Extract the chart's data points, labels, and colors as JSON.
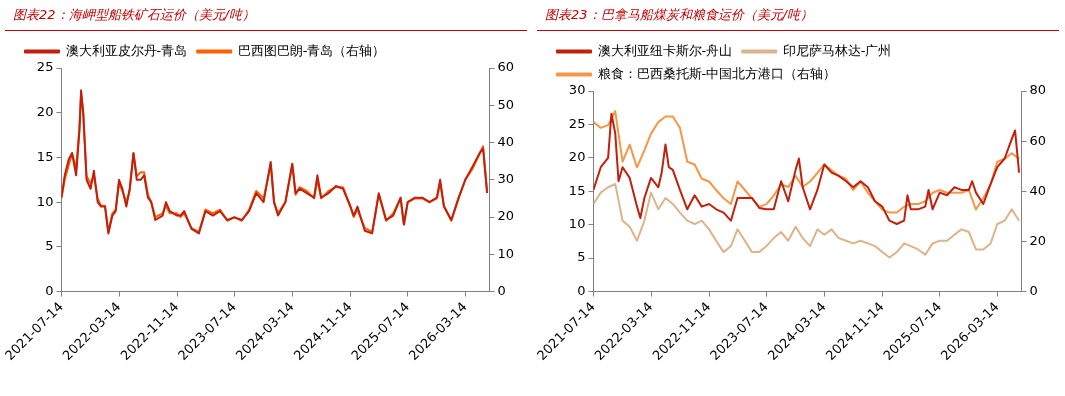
{
  "chart_data": [
    {
      "type": "line",
      "title": "图表22：海岬型船铁矿石运价（美元/吨）",
      "legend": "top",
      "x": [
        "2021-07-14",
        "2021-07-28",
        "2021-08-14",
        "2021-08-28",
        "2021-09-14",
        "2021-09-28",
        "2021-10-05",
        "2021-10-14",
        "2021-10-28",
        "2021-11-14",
        "2021-11-28",
        "2021-12-14",
        "2021-12-28",
        "2022-01-14",
        "2022-01-28",
        "2022-02-14",
        "2022-02-28",
        "2022-03-14",
        "2022-03-28",
        "2022-04-14",
        "2022-04-28",
        "2022-05-14",
        "2022-05-28",
        "2022-06-14",
        "2022-06-28",
        "2022-07-14",
        "2022-07-28",
        "2022-08-14",
        "2022-09-14",
        "2022-09-28",
        "2022-10-14",
        "2022-11-14",
        "2022-11-28",
        "2022-12-14",
        "2023-01-14",
        "2023-02-14",
        "2023-03-14",
        "2023-04-14",
        "2023-05-14",
        "2023-06-14",
        "2023-07-14",
        "2023-08-14",
        "2023-09-14",
        "2023-10-14",
        "2023-11-14",
        "2023-12-14",
        "2023-12-28",
        "2024-01-14",
        "2024-02-14",
        "2024-03-14",
        "2024-03-28",
        "2024-04-14",
        "2024-05-14",
        "2024-06-14",
        "2024-06-28",
        "2024-07-14",
        "2024-08-14",
        "2024-09-14",
        "2024-10-14",
        "2024-11-14",
        "2024-11-28",
        "2024-12-14",
        "2025-01-14",
        "2025-02-14",
        "2025-03-14",
        "2025-04-14",
        "2025-05-14",
        "2025-06-14",
        "2025-06-28",
        "2025-07-14",
        "2025-08-14",
        "2025-09-14",
        "2025-10-14",
        "2025-11-14",
        "2025-11-28",
        "2025-12-14",
        "2026-01-14",
        "2026-02-14",
        "2026-03-14",
        "2026-04-14",
        "2026-05-14",
        "2026-05-28",
        "2026-06-14"
      ],
      "xlim": [
        "2021-07-14",
        "2026-06-24"
      ],
      "xticks": [
        "2021-07-14",
        "2022-03-14",
        "2022-11-14",
        "2023-07-14",
        "2024-03-14",
        "2024-11-14",
        "2025-07-14",
        "2026-03-14"
      ],
      "ylim": [
        0,
        25
      ],
      "yticks": [
        0,
        5,
        10,
        15,
        20,
        25
      ],
      "y2lim": [
        0,
        60
      ],
      "y2ticks": [
        0,
        10,
        20,
        30,
        40,
        50,
        60
      ],
      "series": [
        {
          "name": "澳大利亚皮尔丹-青岛",
          "color": "#c0210e",
          "values": [
            10.5,
            13,
            14.8,
            15.5,
            13,
            18,
            22.5,
            20,
            12.5,
            11.5,
            13.5,
            10,
            9.5,
            9.5,
            6.5,
            8.5,
            9,
            12.5,
            11.5,
            9.5,
            11.5,
            15.5,
            12.5,
            12.5,
            13,
            10.5,
            10,
            8,
            8.5,
            10,
            9,
            8.5,
            8.5,
            9,
            7,
            6.5,
            9,
            8.5,
            9,
            8,
            8.3,
            8,
            9,
            11,
            10,
            14.5,
            10,
            8.5,
            10,
            14.3,
            11,
            11.5,
            11,
            10.5,
            13,
            10.5,
            11,
            11.8,
            11.5,
            9.5,
            8.5,
            9.5,
            6.8,
            6.5,
            11,
            8,
            8.5,
            10.5,
            7.5,
            10,
            10.5,
            10.5,
            10,
            10.5,
            12.5,
            9.5,
            8,
            10.5,
            12.5,
            14,
            15.5,
            16,
            11
          ]
        },
        {
          "name": "巴西图巴朗-青岛（右轴）",
          "color": "#ff6000",
          "axis": "y2",
          "values": [
            25,
            30,
            34,
            37,
            33,
            44,
            53,
            48,
            31,
            29,
            31,
            25,
            23,
            23,
            16,
            21,
            22,
            29,
            27,
            24,
            27,
            37,
            31,
            32,
            32,
            26,
            24,
            20,
            21,
            23,
            21,
            21,
            20,
            21,
            17,
            16,
            22,
            21,
            22,
            19,
            20,
            19,
            22,
            27,
            25,
            34,
            24,
            21,
            24,
            34,
            26,
            28,
            27,
            25,
            30,
            25,
            27,
            28,
            28,
            23,
            20,
            22,
            17,
            16,
            26,
            19,
            21,
            25,
            18,
            24,
            25,
            25,
            24,
            25,
            29,
            23,
            19,
            25,
            30,
            33,
            37,
            39,
            27
          ]
        }
      ]
    },
    {
      "type": "line",
      "title": "图表23：巴拿马船煤炭和粮食运价（美元/吨）",
      "legend": "top",
      "x": [
        "2021-07-14",
        "2021-08-14",
        "2021-09-14",
        "2021-10-14",
        "2021-11-14",
        "2021-12-14",
        "2022-01-14",
        "2022-02-14",
        "2022-03-14",
        "2022-04-14",
        "2022-05-14",
        "2022-06-14",
        "2022-07-14",
        "2022-08-14",
        "2022-09-14",
        "2022-10-14",
        "2022-11-14",
        "2022-12-14",
        "2023-01-14",
        "2023-02-14",
        "2023-03-14",
        "2023-04-14",
        "2023-05-14",
        "2023-06-14",
        "2023-07-14",
        "2023-08-14",
        "2023-09-14",
        "2023-10-14",
        "2023-11-14",
        "2023-12-14",
        "2024-01-14",
        "2024-02-14",
        "2024-03-14",
        "2024-04-14",
        "2024-05-14",
        "2024-06-14",
        "2024-07-14",
        "2024-08-14",
        "2024-09-14",
        "2024-10-14",
        "2024-11-14",
        "2024-12-14",
        "2025-01-14",
        "2025-02-14",
        "2025-03-14",
        "2025-04-14",
        "2025-05-14",
        "2025-06-14",
        "2025-07-14",
        "2025-08-14",
        "2025-09-14",
        "2025-10-14",
        "2025-11-14",
        "2025-12-14",
        "2026-01-14",
        "2026-02-14",
        "2026-03-14",
        "2026-04-14",
        "2026-05-14",
        "2026-06-14"
      ],
      "xlim": [
        "2021-07-14",
        "2026-06-24"
      ],
      "xticks": [
        "2021-07-14",
        "2022-03-14",
        "2022-11-14",
        "2023-07-14",
        "2024-03-14",
        "2024-11-14",
        "2025-07-14",
        "2026-03-14"
      ],
      "ylim": [
        0,
        30
      ],
      "yticks": [
        0,
        5,
        10,
        15,
        20,
        25,
        30
      ],
      "y2lim": [
        0,
        80
      ],
      "y2ticks": [
        0,
        20,
        40,
        60,
        80
      ],
      "series": [
        {
          "name": "澳大利亚纽卡斯尔-舟山",
          "color": "#c0210e",
          "x": [
            "2021-07-14",
            "2021-08-14",
            "2021-09-14",
            "2021-09-28",
            "2021-10-14",
            "2021-10-28",
            "2021-11-14",
            "2021-12-14",
            "2022-01-14",
            "2022-01-28",
            "2022-02-14",
            "2022-03-14",
            "2022-04-14",
            "2022-04-28",
            "2022-05-14",
            "2022-05-28",
            "2022-06-14",
            "2022-07-14",
            "2022-08-14",
            "2022-09-14",
            "2022-10-14",
            "2022-11-14",
            "2022-12-14",
            "2023-01-14",
            "2023-02-14",
            "2023-03-14",
            "2023-04-14",
            "2023-05-14",
            "2023-06-14",
            "2023-07-14",
            "2023-08-14",
            "2023-09-14",
            "2023-10-14",
            "2023-11-14",
            "2023-11-28",
            "2023-12-14",
            "2024-01-14",
            "2024-02-14",
            "2024-03-14",
            "2024-04-14",
            "2024-05-14",
            "2024-06-14",
            "2024-07-14",
            "2024-08-14",
            "2024-09-14",
            "2024-10-14",
            "2024-11-14",
            "2024-12-14",
            "2025-01-14",
            "2025-02-14",
            "2025-02-28",
            "2025-03-14",
            "2025-04-14",
            "2025-05-14",
            "2025-05-28",
            "2025-06-14",
            "2025-07-14",
            "2025-08-14",
            "2025-09-14",
            "2025-10-14",
            "2025-11-14",
            "2025-11-28",
            "2025-12-14",
            "2026-01-14",
            "2026-02-14",
            "2026-03-14",
            "2026-04-14",
            "2026-05-14",
            "2026-05-28",
            "2026-06-14"
          ],
          "values": [
            15.2,
            18.6,
            20,
            26.6,
            23.7,
            16.5,
            18.6,
            17,
            12.7,
            11,
            14,
            17,
            15.6,
            17.8,
            22,
            18.6,
            18.2,
            15.2,
            12.3,
            14.4,
            12.7,
            13.1,
            12.3,
            11.8,
            10.6,
            14,
            14,
            14,
            12.5,
            12.3,
            12.3,
            16.5,
            13.5,
            18.2,
            19.9,
            15.6,
            12.3,
            15.2,
            19,
            17.8,
            17.3,
            16.5,
            15.6,
            16.5,
            15.6,
            13.5,
            12.7,
            10.6,
            10.1,
            10.6,
            14.4,
            12.3,
            12.3,
            12.7,
            15.2,
            12.3,
            14.8,
            14.4,
            15.6,
            15.2,
            15.2,
            16.5,
            14.8,
            13.1,
            16.1,
            18.6,
            19.9,
            22.8,
            24.1,
            17.8
          ]
        },
        {
          "name": "印尼萨马林达-广州",
          "color": "#dcb48c",
          "values": [
            13.1,
            14.8,
            15.6,
            16.1,
            10.6,
            9.7,
            7.6,
            10.6,
            14.8,
            12.3,
            14,
            13.1,
            11.8,
            10.6,
            10.1,
            10.6,
            9.3,
            7.6,
            5.9,
            6.8,
            9.3,
            7.6,
            5.9,
            5.9,
            6.8,
            8,
            8.9,
            7.6,
            9.7,
            8,
            6.8,
            9.3,
            8.5,
            9.3,
            8,
            7.6,
            7.2,
            7.6,
            7.2,
            6.8,
            5.9,
            5.1,
            5.9,
            7.2,
            6.8,
            6.3,
            5.5,
            7.2,
            7.6,
            7.6,
            8.5,
            9.3,
            8.9,
            6.3,
            6.3,
            7.2,
            10.1,
            10.6,
            12.3,
            10.6
          ]
        },
        {
          "name": "粮食：巴西桑托斯-中国北方港口（右轴）",
          "color": "#f79646",
          "axis": "y2",
          "values": [
            67.6,
            65.3,
            66.4,
            72,
            51.8,
            58.6,
            49.5,
            56.3,
            63,
            67.6,
            69.8,
            69.8,
            65.3,
            51.8,
            50.7,
            45,
            43.9,
            40.5,
            37.2,
            34.9,
            43.9,
            40.5,
            37.2,
            33.8,
            34.9,
            38.3,
            42.8,
            41.7,
            46.2,
            41.7,
            43.9,
            47.3,
            50.7,
            48.4,
            46.2,
            45,
            40.5,
            43.9,
            39.4,
            36,
            32.7,
            31.5,
            31.5,
            33.8,
            34.9,
            34.9,
            36,
            39.4,
            40.5,
            39.4,
            39.4,
            39.4,
            40.5,
            32.7,
            37.2,
            42.8,
            51.8,
            52.9,
            55.2,
            52.9
          ]
        }
      ]
    }
  ]
}
